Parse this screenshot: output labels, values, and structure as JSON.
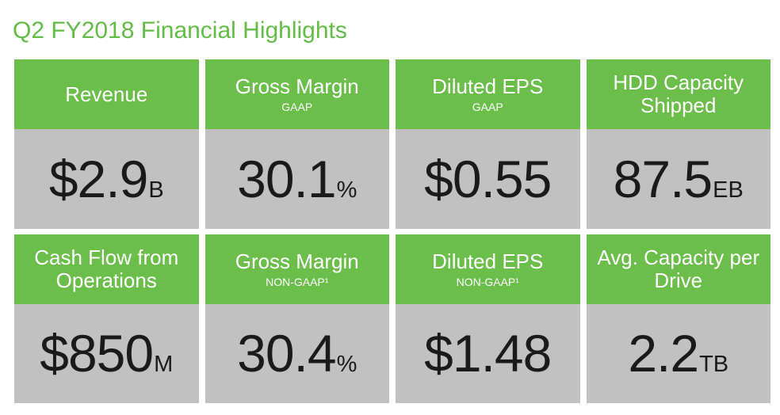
{
  "page": {
    "title": "Q2 FY2018 Financial Highlights"
  },
  "colors": {
    "title_green": "#62BC46",
    "header_green": "#6BBE4A",
    "panel_gray": "#C1C1C1",
    "value_black": "#1A1A1A",
    "header_text": "#FFFFFF"
  },
  "tiles": [
    {
      "title": "Revenue",
      "subtitle": "",
      "value": "$2.9",
      "unit": "B"
    },
    {
      "title": "Gross Margin",
      "subtitle": "GAAP",
      "value": "30.1",
      "unit": "%"
    },
    {
      "title": "Diluted EPS",
      "subtitle": "GAAP",
      "value": "$0.55",
      "unit": ""
    },
    {
      "title": "HDD Capacity Shipped",
      "subtitle": "",
      "value": "87.5",
      "unit": "EB"
    },
    {
      "title": "Cash Flow from Operations",
      "subtitle": "",
      "value": "$850",
      "unit": "M"
    },
    {
      "title": "Gross Margin",
      "subtitle": "NON-GAAP¹",
      "value": "30.4",
      "unit": "%"
    },
    {
      "title": "Diluted EPS",
      "subtitle": "NON-GAAP¹",
      "value": "$1.48",
      "unit": ""
    },
    {
      "title": "Avg. Capacity per Drive",
      "subtitle": "",
      "value": "2.2",
      "unit": "TB"
    }
  ]
}
